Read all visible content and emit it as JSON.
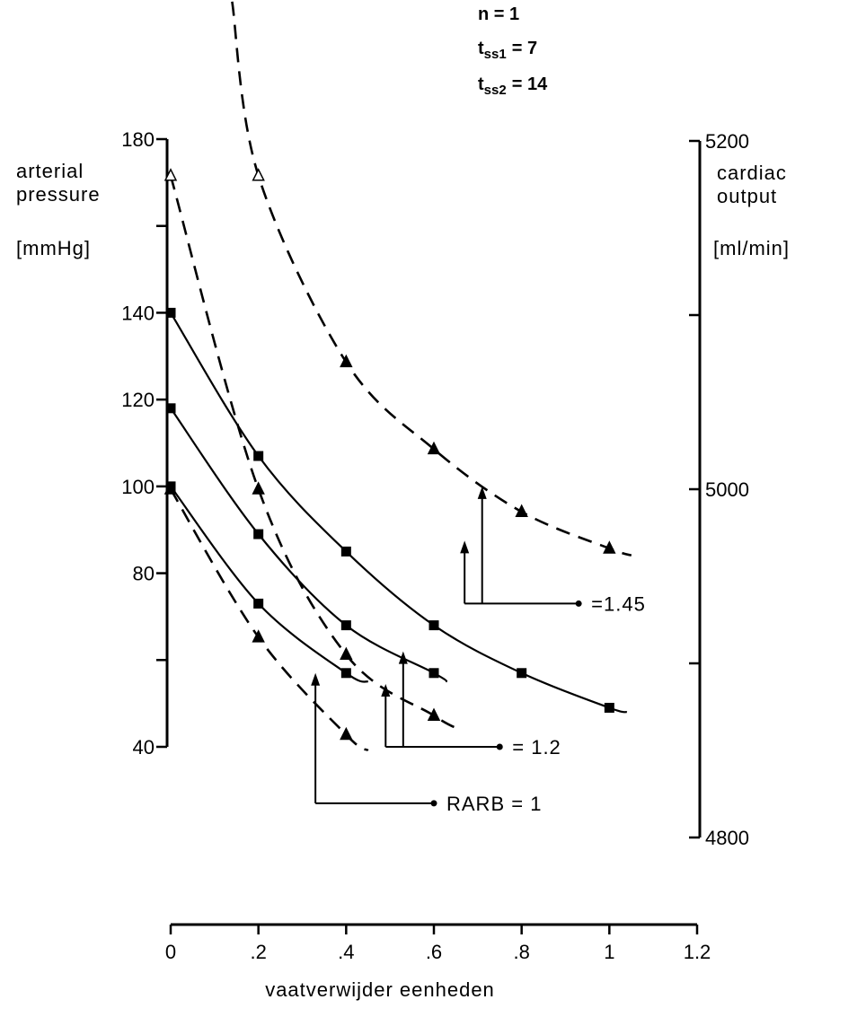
{
  "params": {
    "n": "n = 1",
    "tss1_prefix": "t",
    "tss1_sub": "ss1",
    "tss1_value": "= 7",
    "tss2_prefix": "t",
    "tss2_sub": "ss2",
    "tss2_value": "= 14"
  },
  "chart_data": {
    "type": "line",
    "xlabel": "vaatverwijder eenheden",
    "ylabel_left": [
      "arterial",
      "pressure",
      "[mmHg]"
    ],
    "ylabel_right": [
      "cardiac",
      "output",
      "[ml/min]"
    ],
    "xlim": [
      0,
      1.2
    ],
    "ylim_left": [
      40,
      180
    ],
    "ylim_right": [
      4800,
      5200
    ],
    "x_ticks": [
      {
        "value": 0,
        "label": "0"
      },
      {
        "value": 0.2,
        "label": ".2"
      },
      {
        "value": 0.4,
        "label": ".4"
      },
      {
        "value": 0.6,
        "label": ".6"
      },
      {
        "value": 0.8,
        "label": ".8"
      },
      {
        "value": 1.0,
        "label": "1"
      },
      {
        "value": 1.2,
        "label": "1.2"
      }
    ],
    "y_ticks_left": [
      {
        "value": 40,
        "label": "40"
      },
      {
        "value": 60,
        "label": ""
      },
      {
        "value": 80,
        "label": "80"
      },
      {
        "value": 100,
        "label": "100"
      },
      {
        "value": 120,
        "label": "120"
      },
      {
        "value": 140,
        "label": "140"
      },
      {
        "value": 160,
        "label": ""
      },
      {
        "value": 180,
        "label": "180"
      }
    ],
    "y_ticks_right": [
      {
        "value": 4800,
        "label": "4800"
      },
      {
        "value": 4900,
        "label": ""
      },
      {
        "value": 5000,
        "label": "5000"
      },
      {
        "value": 5100,
        "label": ""
      },
      {
        "value": 5200,
        "label": "5200"
      }
    ],
    "series": [
      {
        "group": "RARB = 1",
        "axis": "left",
        "style": "solid",
        "marker": "square",
        "x": [
          0,
          0.2,
          0.4
        ],
        "y": [
          100,
          73,
          57
        ],
        "tail": [
          0.45,
          55
        ]
      },
      {
        "group": "= 1.2",
        "axis": "left",
        "style": "solid",
        "marker": "square",
        "x": [
          0,
          0.2,
          0.4,
          0.6
        ],
        "y": [
          118,
          89,
          68,
          57
        ],
        "tail": [
          0.63,
          55
        ]
      },
      {
        "group": "=1.45",
        "axis": "left",
        "style": "solid",
        "marker": "square",
        "x": [
          0,
          0.2,
          0.4,
          0.6,
          0.8,
          1.0
        ],
        "y": [
          140,
          107,
          85,
          68,
          57,
          49
        ],
        "tail": [
          1.04,
          48
        ]
      },
      {
        "group": "RARB = 1",
        "axis": "right",
        "style": "dashed",
        "marker": "triangle",
        "x": [
          0,
          0.2,
          0.4
        ],
        "y": [
          5000,
          4915,
          4859
        ],
        "tail": [
          0.45,
          4850
        ]
      },
      {
        "group": "= 1.2",
        "axis": "right",
        "style": "dashed",
        "marker": "triangle-open",
        "x": [
          0,
          0.2,
          0.4,
          0.6
        ],
        "y": [
          5180,
          5000,
          4905,
          4870
        ],
        "tail": [
          0.66,
          4862
        ]
      },
      {
        "group": "=1.45",
        "axis": "right",
        "style": "dashed",
        "marker": "triangle-open",
        "x": [
          0.2,
          0.4,
          0.6,
          0.8,
          1.0
        ],
        "y": [
          5180,
          5073,
          5023,
          4987,
          4966
        ],
        "tail": [
          1.05,
          4962
        ],
        "head": [
          0.14,
          5280
        ]
      }
    ],
    "callouts": [
      {
        "label": "RARB = 1",
        "target_x": 0.33,
        "branch_x": 0.33,
        "branch_y": 57,
        "end_x": 0.6,
        "level_y": 27
      },
      {
        "label": "= 1.2",
        "target_x": 0.49,
        "branch_x": 0.53,
        "branch_y": 62,
        "end_x": 0.75,
        "level_y": 40
      },
      {
        "label": "=1.45",
        "target_x": 0.67,
        "branch_x": 0.71,
        "branch_y": 100,
        "end_x": 0.93,
        "level_y": 73
      }
    ]
  }
}
